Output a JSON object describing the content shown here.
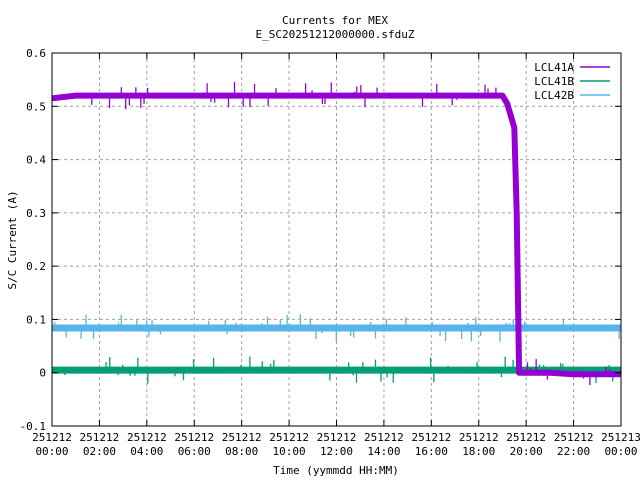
{
  "chart_data": {
    "type": "line",
    "title": "Currents for MEX",
    "subtitle": "E_SC20251212000000.sfduZ",
    "xlabel": "Time (yymmdd HH:MM)",
    "ylabel": "S/C Current (A)",
    "xlim_hours": [
      0,
      24
    ],
    "ylim": [
      -0.1,
      0.6
    ],
    "grid": true,
    "legend_position": "top-right",
    "yticks": [
      {
        "value": -0.1,
        "label": "-0.1"
      },
      {
        "value": 0,
        "label": "0"
      },
      {
        "value": 0.1,
        "label": "0.1"
      },
      {
        "value": 0.2,
        "label": "0.2"
      },
      {
        "value": 0.3,
        "label": "0.3"
      },
      {
        "value": 0.4,
        "label": "0.4"
      },
      {
        "value": 0.5,
        "label": "0.5"
      },
      {
        "value": 0.6,
        "label": "0.6"
      }
    ],
    "xticks": [
      {
        "value": 0,
        "date": "251212",
        "time": "00:00"
      },
      {
        "value": 2,
        "date": "251212",
        "time": "02:00"
      },
      {
        "value": 4,
        "date": "251212",
        "time": "04:00"
      },
      {
        "value": 6,
        "date": "251212",
        "time": "06:00"
      },
      {
        "value": 8,
        "date": "251212",
        "time": "08:00"
      },
      {
        "value": 10,
        "date": "251212",
        "time": "10:00"
      },
      {
        "value": 12,
        "date": "251212",
        "time": "12:00"
      },
      {
        "value": 14,
        "date": "251212",
        "time": "14:00"
      },
      {
        "value": 16,
        "date": "251212",
        "time": "16:00"
      },
      {
        "value": 18,
        "date": "251212",
        "time": "18:00"
      },
      {
        "value": 20,
        "date": "251212",
        "time": "20:00"
      },
      {
        "value": 22,
        "date": "251212",
        "time": "22:00"
      },
      {
        "value": 24,
        "date": "251213",
        "time": "00:00"
      }
    ],
    "series": [
      {
        "name": "LCL41A",
        "color": "#9400d3",
        "x": [
          0,
          1,
          2,
          3,
          4,
          5,
          6,
          7,
          8,
          9,
          10,
          11,
          12,
          13,
          14,
          15,
          16,
          17,
          18,
          19,
          19.2,
          19.5,
          19.6,
          19.7,
          20,
          21,
          22,
          23,
          24
        ],
        "y": [
          0.515,
          0.52,
          0.52,
          0.52,
          0.52,
          0.52,
          0.52,
          0.52,
          0.52,
          0.52,
          0.52,
          0.52,
          0.52,
          0.52,
          0.52,
          0.52,
          0.52,
          0.52,
          0.52,
          0.52,
          0.505,
          0.46,
          0.3,
          0.0,
          0.0,
          0.0,
          -0.003,
          -0.003,
          -0.003
        ]
      },
      {
        "name": "LCL41B",
        "color": "#009e73",
        "x": [
          0,
          4,
          8,
          12,
          16,
          20,
          24
        ],
        "y": [
          0.005,
          0.005,
          0.005,
          0.005,
          0.005,
          0.005,
          0.005
        ]
      },
      {
        "name": "LCL42B",
        "color": "#56b4e9",
        "x": [
          0,
          4,
          8,
          12,
          16,
          20,
          24
        ],
        "y": [
          0.084,
          0.084,
          0.084,
          0.084,
          0.084,
          0.084,
          0.084
        ]
      }
    ]
  }
}
